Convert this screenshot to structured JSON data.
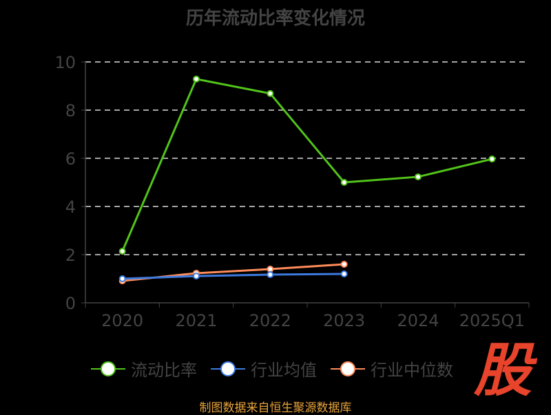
{
  "chart_data": {
    "type": "line",
    "title": "历年流动比率变化情况",
    "categories": [
      "2020",
      "2021",
      "2022",
      "2023",
      "2024",
      "2025Q1"
    ],
    "ylim": [
      0,
      10
    ],
    "yticks": [
      0,
      2,
      4,
      6,
      8,
      10
    ],
    "grid": true,
    "legend_position": "bottom",
    "series": [
      {
        "name": "流动比率",
        "color": "#52c41a",
        "values": [
          2.14,
          9.29,
          8.69,
          5.0,
          5.23,
          5.97
        ]
      },
      {
        "name": "行业均值",
        "color": "#3d7be0",
        "values": [
          1.0,
          1.11,
          1.17,
          1.2,
          null,
          null
        ]
      },
      {
        "name": "行业中位数",
        "color": "#ff8c5a",
        "values": [
          0.91,
          1.23,
          1.4,
          1.6,
          null,
          null
        ]
      }
    ]
  },
  "footer": "制图数据来自恒生聚源数据库",
  "logo_text": "股"
}
